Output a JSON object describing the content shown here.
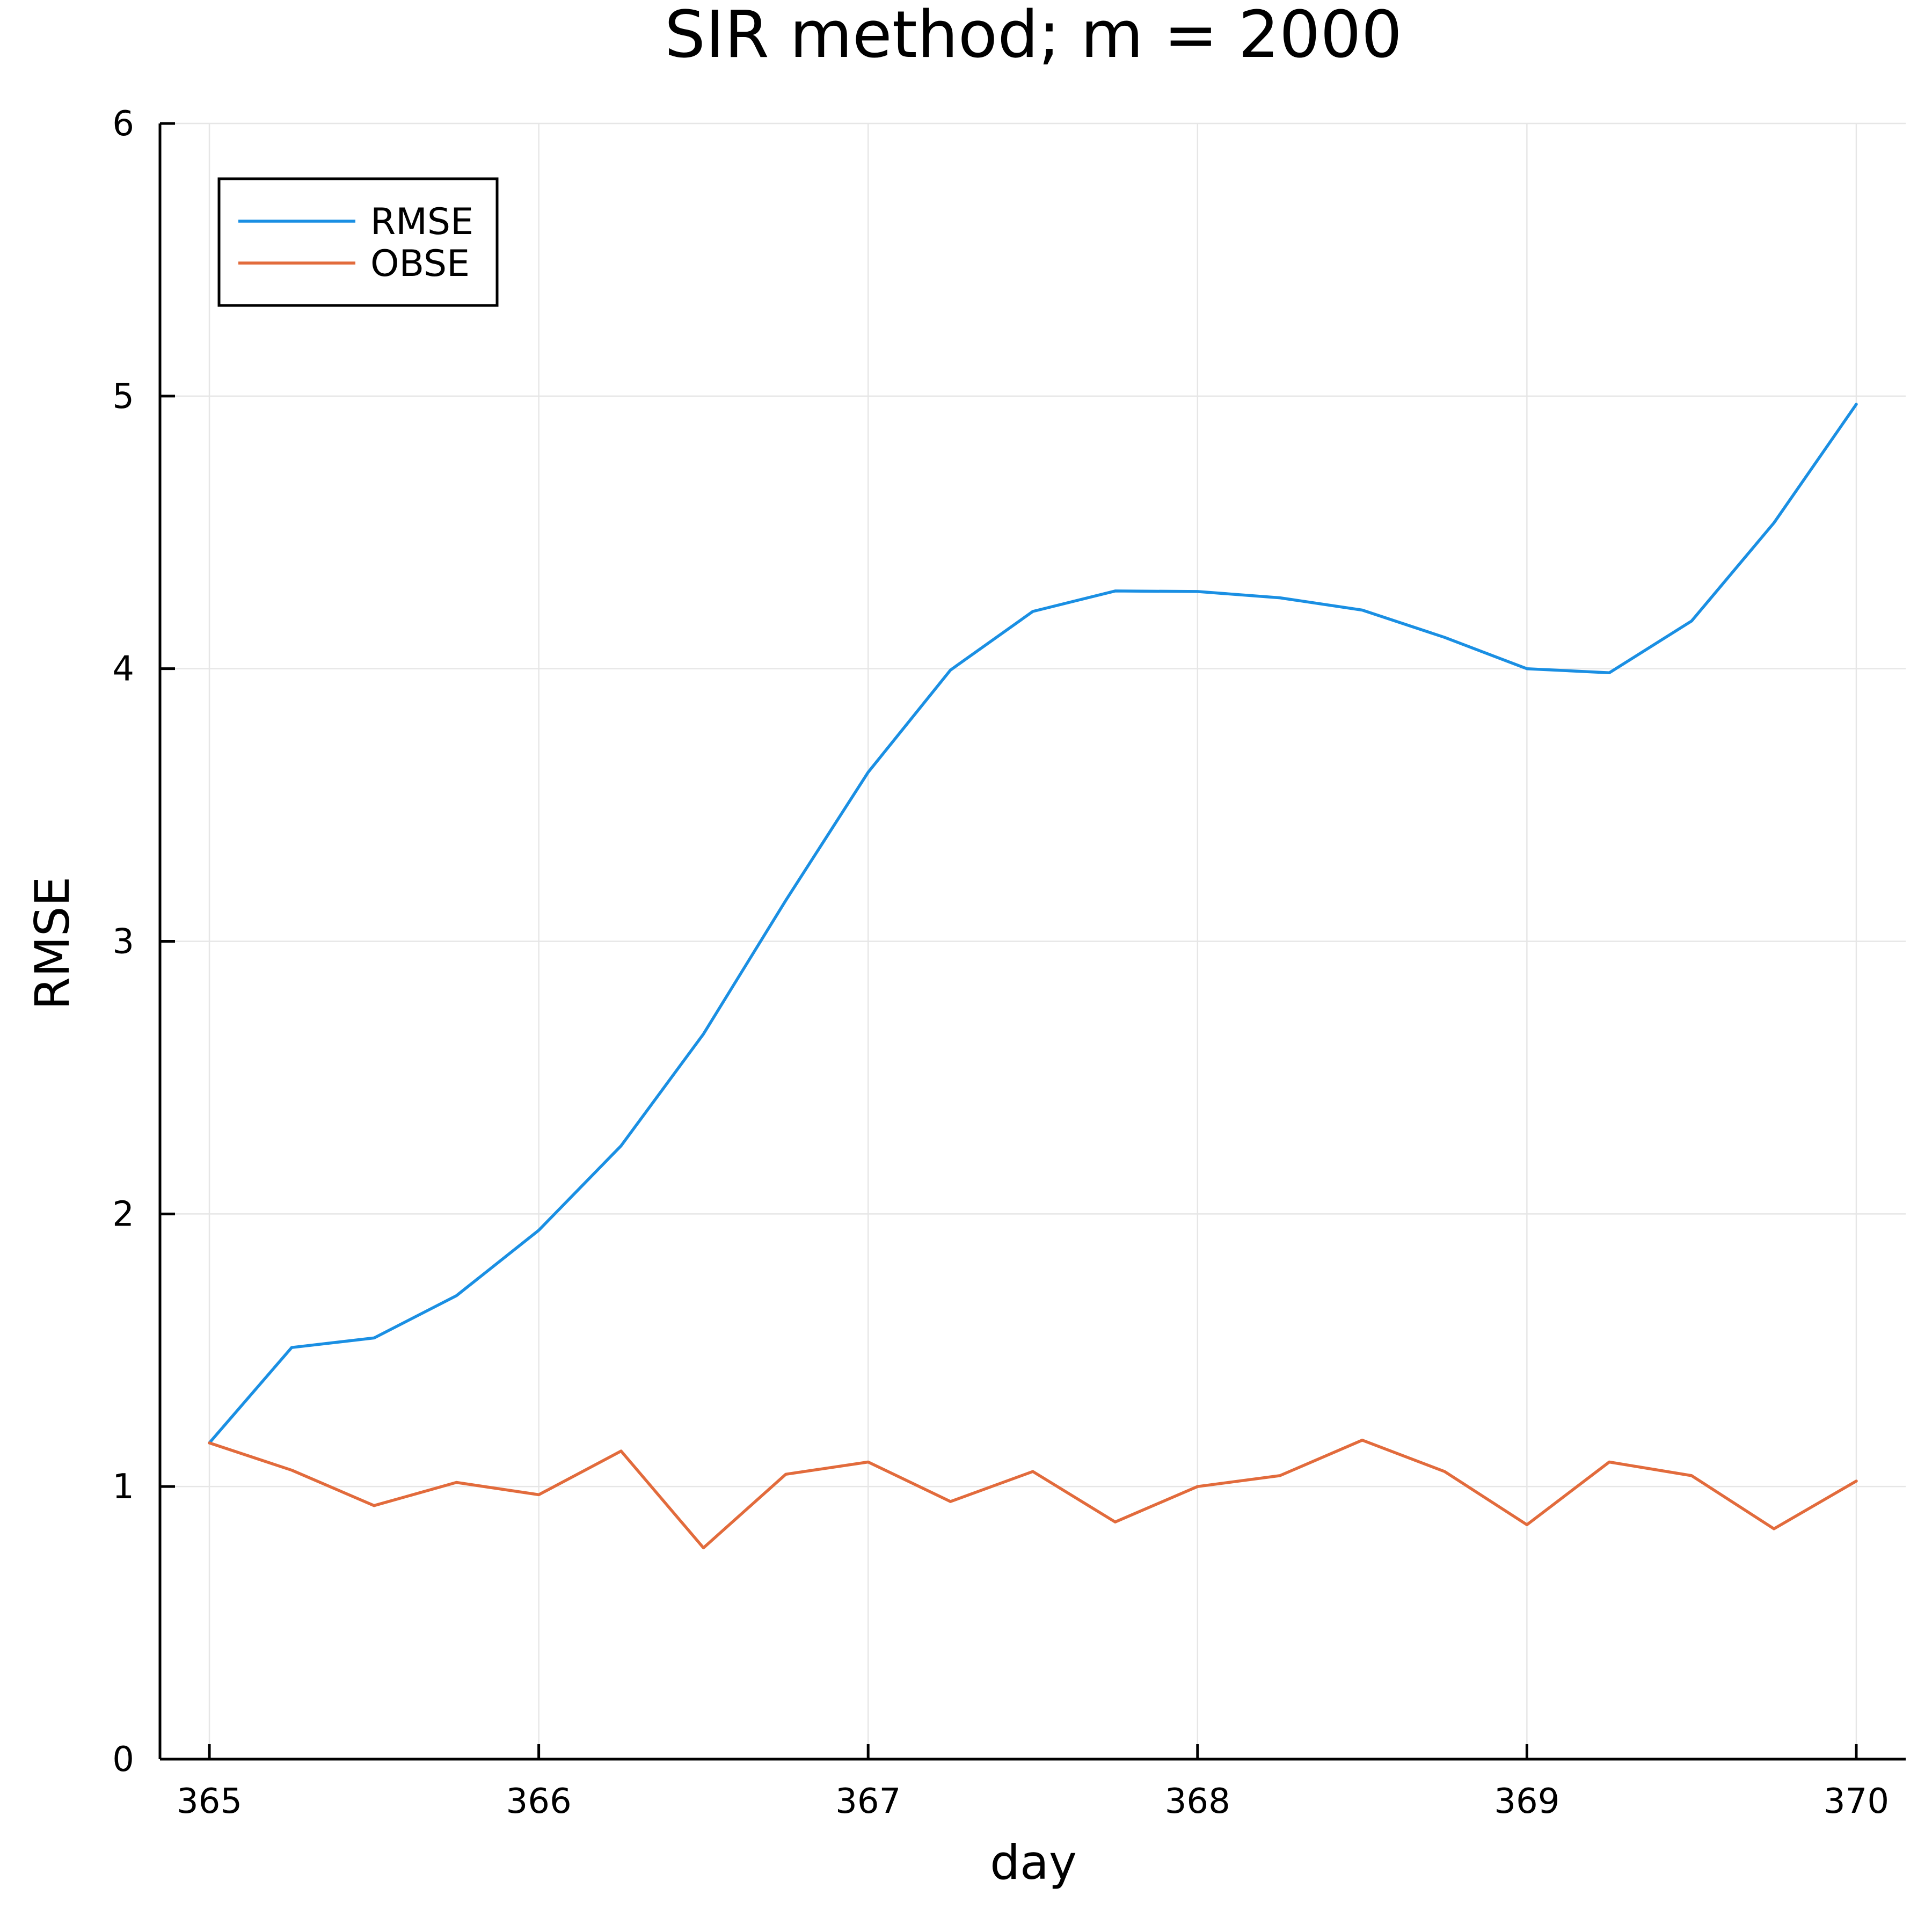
{
  "chart_data": {
    "type": "line",
    "title": "SIR method; m = 2000",
    "xlabel": "day",
    "ylabel": "RMSE",
    "x": [
      365,
      365.25,
      365.5,
      365.75,
      366,
      366.25,
      366.5,
      366.75,
      367,
      367.25,
      367.5,
      367.75,
      368,
      368.25,
      368.5,
      368.75,
      369,
      369.25,
      369.5,
      369.75,
      370
    ],
    "series": [
      {
        "name": "RMSE",
        "color": "#1a8fe3",
        "values": [
          1.16,
          1.51,
          1.545,
          1.7,
          1.94,
          2.25,
          2.66,
          3.15,
          3.62,
          3.995,
          4.21,
          4.285,
          4.283,
          4.26,
          4.215,
          4.115,
          4.0,
          3.985,
          4.175,
          4.535,
          4.97
        ]
      },
      {
        "name": "OBSE",
        "color": "#e26b3c",
        "values": [
          1.16,
          1.06,
          0.93,
          1.015,
          0.97,
          1.13,
          0.775,
          1.045,
          1.09,
          0.945,
          1.055,
          0.87,
          1.0,
          1.04,
          1.17,
          1.055,
          0.86,
          1.09,
          1.04,
          0.845,
          1.02
        ]
      }
    ],
    "xlim": [
      364.85,
      370.15
    ],
    "ylim": [
      0,
      6
    ],
    "xticks": [
      365,
      366,
      367,
      368,
      369,
      370
    ],
    "yticks": [
      0,
      1,
      2,
      3,
      4,
      5,
      6
    ],
    "xtick_labels": [
      "365",
      "366",
      "367",
      "368",
      "369",
      "370"
    ],
    "ytick_labels": [
      "0",
      "1",
      "2",
      "3",
      "4",
      "5",
      "6"
    ],
    "grid": true,
    "legend_position": "top-left"
  }
}
